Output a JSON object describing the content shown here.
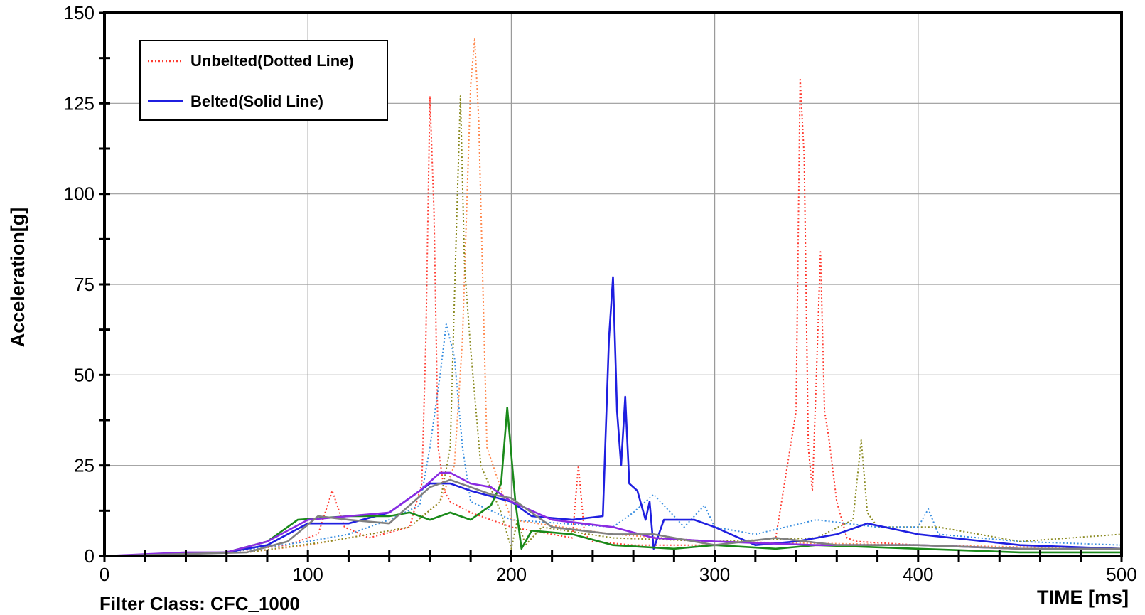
{
  "chart_data": {
    "type": "line",
    "title": "",
    "xlabel": "TIME [ms]",
    "ylabel": "Acceleration[g]",
    "footer": "Filter Class: CFC_1000",
    "xlim": [
      0,
      500
    ],
    "ylim": [
      0,
      150
    ],
    "xticks": [
      "0",
      "100",
      "200",
      "300",
      "400",
      "500"
    ],
    "yticks": [
      "0",
      "25",
      "50",
      "75",
      "100",
      "125",
      "150"
    ],
    "grid": true,
    "legend_position": "top-left",
    "legend": [
      {
        "label": "Unbelted(Dotted Line)",
        "color": "#ff3b30",
        "dashed": true
      },
      {
        "label": "Belted(Solid Line)",
        "color": "#1f1fe0",
        "dashed": false
      }
    ],
    "series": [
      {
        "color": "#ff3b30",
        "dashed": true,
        "x": [
          0,
          60,
          90,
          105,
          112,
          118,
          130,
          150,
          156,
          158,
          160,
          162,
          164,
          167,
          170,
          180,
          200,
          230,
          233,
          236,
          240,
          260,
          300,
          330,
          340,
          342,
          344,
          346,
          348,
          350,
          352,
          354,
          356,
          360,
          365,
          370,
          400,
          450,
          500
        ],
        "y": [
          0,
          1,
          3,
          6,
          18,
          8,
          5,
          8,
          20,
          60,
          127,
          95,
          30,
          18,
          15,
          12,
          8,
          5,
          25,
          6,
          4,
          3,
          3,
          5,
          40,
          132,
          110,
          30,
          18,
          50,
          84,
          40,
          33,
          15,
          5,
          4,
          3,
          2,
          2
        ]
      },
      {
        "color": "#ff8a50",
        "dashed": true,
        "x": [
          0,
          70,
          100,
          120,
          150,
          165,
          172,
          176,
          180,
          182,
          184,
          188,
          200,
          250,
          300,
          400,
          500
        ],
        "y": [
          0,
          1,
          3,
          5,
          8,
          15,
          25,
          60,
          130,
          143,
          120,
          30,
          10,
          6,
          4,
          3,
          2
        ]
      },
      {
        "color": "#8a8a20",
        "dashed": true,
        "x": [
          0,
          70,
          110,
          150,
          165,
          170,
          173,
          175,
          177,
          180,
          185,
          195,
          200,
          203,
          207,
          215,
          250,
          300,
          350,
          368,
          372,
          375,
          380,
          410,
          450,
          500
        ],
        "y": [
          0,
          1,
          4,
          8,
          15,
          30,
          90,
          127,
          80,
          57,
          25,
          12,
          2,
          10,
          3,
          8,
          5,
          4,
          5,
          10,
          32,
          12,
          8,
          8,
          4,
          6
        ]
      },
      {
        "color": "#3a8fe0",
        "dashed": true,
        "x": [
          0,
          60,
          100,
          120,
          140,
          155,
          160,
          165,
          168,
          172,
          176,
          180,
          200,
          250,
          260,
          270,
          285,
          295,
          300,
          320,
          350,
          380,
          400,
          405,
          410,
          450,
          500
        ],
        "y": [
          0,
          1,
          4,
          6,
          10,
          14,
          30,
          50,
          64,
          55,
          30,
          15,
          10,
          8,
          12,
          17,
          8,
          14,
          8,
          6,
          10,
          8,
          8,
          13,
          6,
          4,
          3
        ]
      },
      {
        "color": "#1f1fe0",
        "dashed": false,
        "x": [
          0,
          60,
          80,
          100,
          120,
          140,
          160,
          170,
          180,
          200,
          210,
          230,
          245,
          248,
          250,
          252,
          254,
          256,
          258,
          262,
          266,
          268,
          270,
          275,
          280,
          290,
          300,
          320,
          340,
          360,
          375,
          400,
          450,
          500
        ],
        "y": [
          0,
          1,
          3,
          9,
          9,
          12,
          20,
          20,
          18,
          15,
          11,
          10,
          11,
          60,
          77,
          40,
          25,
          44,
          20,
          18,
          10,
          15,
          2,
          10,
          10,
          10,
          8,
          3,
          4,
          6,
          9,
          6,
          3,
          2
        ]
      },
      {
        "color": "#1a8a1a",
        "dashed": false,
        "x": [
          0,
          60,
          80,
          95,
          120,
          140,
          150,
          160,
          170,
          180,
          190,
          195,
          198,
          202,
          205,
          210,
          230,
          250,
          280,
          300,
          330,
          350,
          400,
          450,
          500
        ],
        "y": [
          0,
          1,
          4,
          10,
          11,
          11,
          12,
          10,
          12,
          10,
          14,
          20,
          41,
          15,
          2,
          7,
          6,
          3,
          2,
          3,
          2,
          3,
          2,
          1,
          1
        ]
      },
      {
        "color": "#8a2be2",
        "dashed": false,
        "x": [
          0,
          40,
          60,
          80,
          100,
          120,
          140,
          155,
          165,
          170,
          180,
          190,
          200,
          220,
          250,
          270,
          300,
          350,
          400,
          450,
          500
        ],
        "y": [
          0,
          1,
          1,
          4,
          10,
          11,
          12,
          18,
          23,
          23,
          20,
          19,
          15,
          10,
          8,
          5,
          4,
          3,
          3,
          2,
          2
        ]
      },
      {
        "color": "#808080",
        "dashed": false,
        "x": [
          0,
          70,
          90,
          105,
          120,
          140,
          160,
          170,
          180,
          190,
          200,
          220,
          250,
          270,
          290,
          300,
          330,
          360,
          400,
          450,
          500
        ],
        "y": [
          0,
          1,
          4,
          11,
          10,
          9,
          19,
          21,
          19,
          17,
          16,
          8,
          6,
          6,
          4,
          3,
          5,
          3,
          3,
          2,
          2
        ]
      }
    ]
  }
}
